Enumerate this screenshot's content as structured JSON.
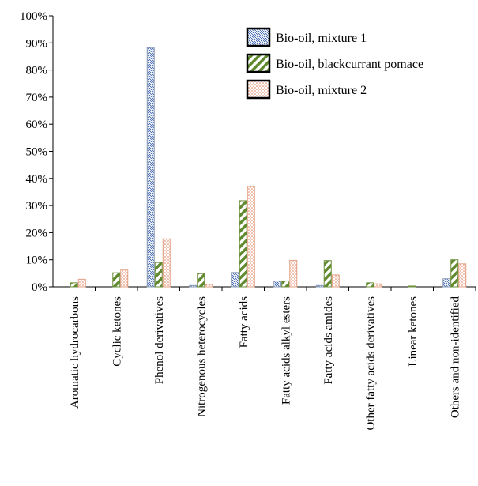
{
  "chart_data": {
    "type": "bar",
    "categories": [
      "Aromatic hydrocarbons",
      "Cyclic ketones",
      "Phenol derivatives",
      "Nitrogenous heterocycles",
      "Fatty acids",
      "Fatty acids alkyl esters",
      "Fatty acids amides",
      "Other fatty acids derivatives",
      "Linear ketones",
      "Others and non-identified"
    ],
    "series": [
      {
        "name": "Bio-oil, mixture 1",
        "values": [
          0,
          0,
          88.3,
          0.5,
          5.3,
          2.1,
          0.5,
          0,
          0,
          3.0
        ]
      },
      {
        "name": "Bio-oil, blackcurrant pomace",
        "values": [
          1.5,
          5.2,
          9.0,
          4.9,
          31.8,
          2.2,
          9.7,
          1.5,
          0.3,
          10.0
        ]
      },
      {
        "name": "Bio-oil, mixture 2",
        "values": [
          2.8,
          6.2,
          17.7,
          0.9,
          37.0,
          9.8,
          4.4,
          1.1,
          0,
          8.5
        ]
      }
    ],
    "ylim": [
      0,
      100
    ],
    "yticks": [
      "0%",
      "10%",
      "20%",
      "30%",
      "40%",
      "50%",
      "60%",
      "70%",
      "80%",
      "90%",
      "100%"
    ],
    "xlabel": "",
    "ylabel": "",
    "legend_position": "top-right",
    "grid": false,
    "colors": {
      "series1_stroke": "#8a9bb5",
      "series1_pattern": "#3a62b0",
      "series2_stroke": "#6b8f3a",
      "series2_pattern": "#5f8a2e",
      "series3_stroke": "#e2a083",
      "series3_pattern": "#e07a55"
    }
  }
}
